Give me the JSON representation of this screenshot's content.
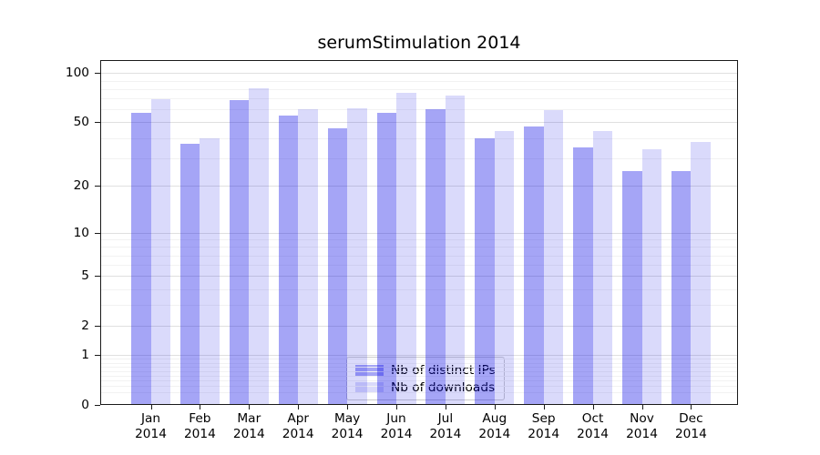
{
  "colors": {
    "background": "#ffffff",
    "axis": "#1a1a1a",
    "text": "#000000",
    "grid_major": "#e0e0e0",
    "grid_minor": "#f2f2f2",
    "bar_distinct_ips": "rgba(10,10,230,0.37)",
    "bar_downloads": "rgba(10,10,230,0.15)",
    "bar_distinct_ips_hex_over_white": "#a4a4f5",
    "bar_downloads_hex_over_white": "#dadafb"
  },
  "chart_data": {
    "type": "bar",
    "title": "serumStimulation 2014",
    "categories": [
      "Jan 2014",
      "Feb 2014",
      "Mar 2014",
      "Apr 2014",
      "May 2014",
      "Jun 2014",
      "Jul 2014",
      "Aug 2014",
      "Sep 2014",
      "Oct 2014",
      "Nov 2014",
      "Dec 2014"
    ],
    "series": [
      {
        "name": "Nb of distinct IPs",
        "fill": "rgba(10,10,230,0.37)",
        "values": [
          57,
          37,
          68,
          55,
          46,
          57,
          60,
          40,
          47,
          35,
          25,
          25
        ]
      },
      {
        "name": "Nb of downloads",
        "fill": "rgba(10,10,230,0.15)",
        "values": [
          69,
          40,
          81,
          60,
          61,
          76,
          73,
          44,
          59,
          44,
          34,
          38
        ]
      }
    ],
    "xlabel": "",
    "ylabel": "",
    "yscale": "symlog-ln(1+v)",
    "ylim": [
      0,
      120
    ],
    "yticks": [
      100,
      50,
      20,
      10,
      5,
      2,
      1,
      0
    ],
    "minor_gridlines": [
      0.2,
      0.3,
      0.4,
      0.5,
      0.6,
      0.7,
      0.8,
      0.9,
      3,
      4,
      6,
      7,
      8,
      9,
      30,
      40,
      60,
      70,
      80,
      90
    ],
    "grid": true,
    "legend_position": "lower center"
  }
}
